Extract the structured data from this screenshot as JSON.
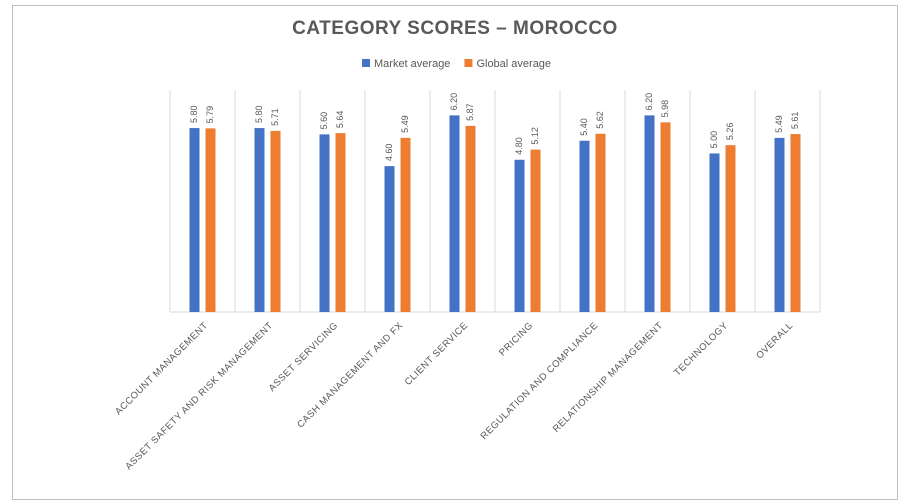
{
  "chart_data": {
    "type": "bar",
    "title": "CATEGORY SCORES – MOROCCO",
    "categories": [
      "ACCOUNT MANAGEMENT",
      "ASSET SAFETY AND RISK MANAGEMENT",
      "ASSET SERVICING",
      "CASH MANAGEMENT AND FX",
      "CLIENT SERVICE",
      "PRICING",
      "REGULATION AND COMPLIANCE",
      "RELATIONSHIP MANAGEMENT",
      "TECHNOLOGY",
      "OVERALL"
    ],
    "series": [
      {
        "name": "Market average",
        "color": "#4472c4",
        "values": [
          5.8,
          5.8,
          5.6,
          4.6,
          6.2,
          4.8,
          5.4,
          6.2,
          5.0,
          5.49
        ],
        "value_labels": [
          "5.80",
          "5.80",
          "5.60",
          "4.60",
          "6.20",
          "4.80",
          "5.40",
          "6.20",
          "5.00",
          "5.49"
        ]
      },
      {
        "name": "Global average",
        "color": "#ed7d31",
        "values": [
          5.79,
          5.71,
          5.64,
          5.49,
          5.87,
          5.12,
          5.62,
          5.98,
          5.26,
          5.61
        ],
        "value_labels": [
          "5.79",
          "5.71",
          "5.64",
          "5.49",
          "5.87",
          "5.12",
          "5.62",
          "5.98",
          "5.26",
          "5.61"
        ]
      }
    ],
    "ylim": [
      0,
      7
    ],
    "legend": "top"
  }
}
